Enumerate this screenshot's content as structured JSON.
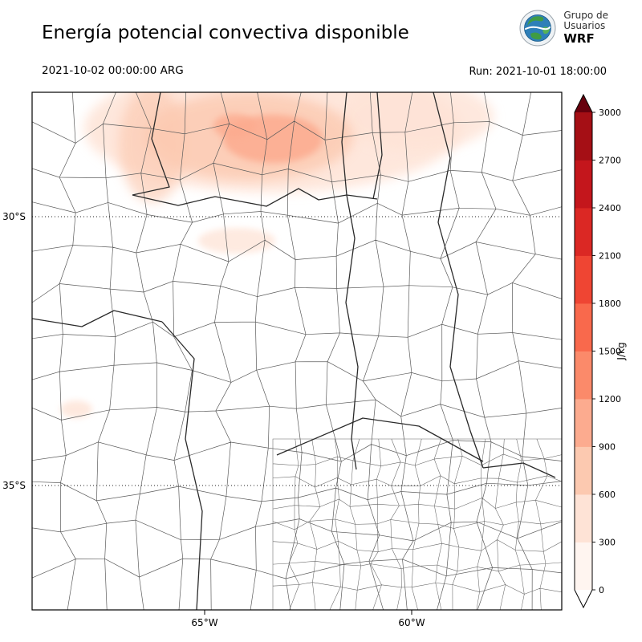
{
  "header": {
    "title": "Energía potencial convectiva disponible",
    "logo": {
      "line1": "Grupo de",
      "line2": "Usuarios",
      "line3": "WRF"
    }
  },
  "subheader": {
    "valid_time": "2021-10-02 00:00:00 ARG",
    "run_label": "Run: 2021-10-01 18:00:00"
  },
  "map": {
    "y_ticks": [
      "30°S",
      "35°S"
    ],
    "x_ticks": [
      "65°W",
      "60°W"
    ]
  },
  "colorbar": {
    "unit": "J/kg",
    "ticks": [
      0,
      300,
      600,
      900,
      1200,
      1500,
      1800,
      2100,
      2400,
      2700,
      3000
    ],
    "segment_colors": [
      "#fff5f0",
      "#fee3d6",
      "#fcc9b0",
      "#fcab8f",
      "#fb8a6a",
      "#f9694c",
      "#ef4533",
      "#db2824",
      "#c4161c",
      "#a50f15"
    ],
    "under_color": "#ffffff",
    "over_color": "#67000d"
  },
  "cape_shading": {
    "level_colors": [
      "#fee3d6",
      "#fcc9b0",
      "#fcab8f"
    ]
  },
  "chart_data": {
    "type": "heatmap",
    "title": "Energía potencial convectiva disponible",
    "variable": "CAPE",
    "units": "J/kg",
    "valid_time": "2021-10-02 00:00:00 ARG",
    "run_time": "2021-10-01 18:00:00",
    "colorbar_ticks": [
      0,
      300,
      600,
      900,
      1200,
      1500,
      1800,
      2100,
      2400,
      2700,
      3000
    ],
    "colorbar_range": [
      0,
      3000
    ],
    "lat_ticks": [
      "30°S",
      "35°S"
    ],
    "lon_ticks": [
      "65°W",
      "60°W"
    ],
    "field_summary": "Weak CAPE shading roughly 100-900 J/kg over the northern edge of the domain (north of 30S), near zero over the rest of central Argentina"
  }
}
